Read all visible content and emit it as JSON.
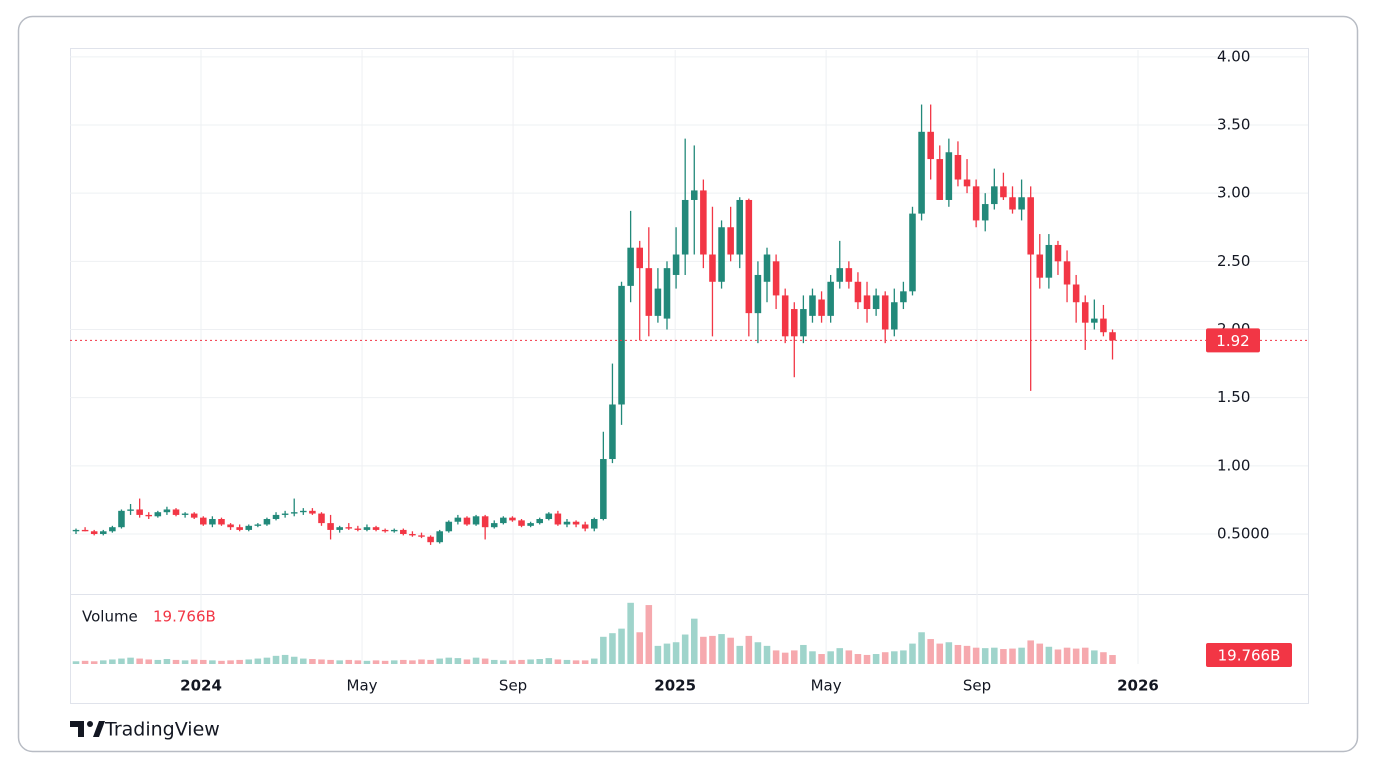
{
  "chart_data": {
    "type": "candlestick",
    "brand": "TradingView",
    "volume_label": "Volume",
    "last_price": 1.92,
    "last_volume": {
      "value": 19.766,
      "label": "19.766B"
    },
    "up_color": "#22897a",
    "down_color": "#f23645",
    "volume_up_color": "#9fd4cb",
    "volume_down_color": "#f6a9ae",
    "ylim": [
      0.06,
      4.05
    ],
    "yticks": [
      {
        "value": 0.5,
        "label": "0.5000"
      },
      {
        "value": 1,
        "label": "1.00"
      },
      {
        "value": 1.5,
        "label": "1.50"
      },
      {
        "value": 2,
        "label": "2.00"
      },
      {
        "value": 2.5,
        "label": "2.50"
      },
      {
        "value": 3,
        "label": "3.00"
      },
      {
        "value": 3.5,
        "label": "3.50"
      },
      {
        "value": 4,
        "label": "4.00"
      }
    ],
    "xlim": [
      -0.66,
      135.5
    ],
    "xticks": [
      {
        "value": 13.75,
        "label": "2024"
      },
      {
        "value": 31.46,
        "label": "May"
      },
      {
        "value": 48.07,
        "label": "Sep"
      },
      {
        "value": 65.9,
        "label": "2025"
      },
      {
        "value": 82.5,
        "label": "May"
      },
      {
        "value": 99.1,
        "label": "Sep"
      },
      {
        "value": 116.8,
        "label": "2026"
      }
    ],
    "volume_lim": [
      0,
      150
    ],
    "grid": true,
    "open": [
      0.52,
      0.53,
      0.52,
      0.5,
      0.52,
      0.55,
      0.67,
      0.68,
      0.64,
      0.63,
      0.66,
      0.68,
      0.64,
      0.65,
      0.62,
      0.57,
      0.61,
      0.57,
      0.55,
      0.53,
      0.56,
      0.57,
      0.61,
      0.64,
      0.65,
      0.66,
      0.67,
      0.65,
      0.58,
      0.53,
      0.55,
      0.54,
      0.53,
      0.55,
      0.53,
      0.52,
      0.53,
      0.5,
      0.49,
      0.48,
      0.44,
      0.52,
      0.59,
      0.62,
      0.57,
      0.63,
      0.55,
      0.58,
      0.62,
      0.6,
      0.56,
      0.58,
      0.61,
      0.65,
      0.57,
      0.59,
      0.57,
      0.54,
      0.61,
      1.05,
      1.45,
      2.32,
      2.6,
      2.45,
      2.1,
      2.08,
      2.4,
      2.55,
      2.95,
      3.02,
      2.55,
      2.35,
      2.75,
      2.55,
      2.95,
      2.12,
      2.35,
      2.5,
      2.25,
      2.15,
      1.95,
      2.1,
      2.22,
      2.1,
      2.35,
      2.45,
      2.35,
      2.25,
      2.15,
      2.25,
      2.0,
      2.2,
      2.28,
      2.85,
      3.45,
      3.25,
      2.95,
      3.28,
      3.1,
      3.05,
      2.8,
      2.92,
      3.05,
      2.97,
      2.88,
      2.97,
      2.55,
      2.38,
      2.62,
      2.5,
      2.33,
      2.2,
      2.05,
      2.08,
      1.98
    ],
    "high": [
      0.54,
      0.55,
      0.53,
      0.53,
      0.56,
      0.68,
      0.72,
      0.76,
      0.66,
      0.67,
      0.7,
      0.69,
      0.66,
      0.66,
      0.63,
      0.63,
      0.62,
      0.58,
      0.57,
      0.57,
      0.58,
      0.62,
      0.66,
      0.67,
      0.76,
      0.69,
      0.69,
      0.66,
      0.64,
      0.56,
      0.58,
      0.56,
      0.57,
      0.56,
      0.54,
      0.54,
      0.54,
      0.52,
      0.51,
      0.49,
      0.53,
      0.6,
      0.64,
      0.63,
      0.64,
      0.64,
      0.6,
      0.63,
      0.63,
      0.61,
      0.59,
      0.62,
      0.66,
      0.67,
      0.61,
      0.6,
      0.59,
      0.62,
      1.25,
      1.75,
      2.35,
      2.87,
      2.65,
      2.75,
      2.45,
      2.5,
      2.75,
      3.4,
      3.35,
      3.1,
      2.9,
      2.8,
      2.9,
      2.97,
      2.96,
      2.5,
      2.6,
      2.55,
      2.3,
      2.2,
      2.25,
      2.3,
      2.28,
      2.4,
      2.65,
      2.5,
      2.42,
      2.35,
      2.3,
      2.28,
      2.3,
      2.35,
      2.9,
      3.65,
      3.65,
      3.35,
      3.4,
      3.38,
      3.25,
      3.1,
      3.0,
      3.18,
      3.15,
      3.05,
      3.1,
      3.05,
      2.7,
      2.7,
      2.65,
      2.58,
      2.4,
      2.25,
      2.22,
      2.18,
      2.0
    ],
    "low": [
      0.5,
      0.52,
      0.49,
      0.49,
      0.51,
      0.54,
      0.64,
      0.62,
      0.61,
      0.62,
      0.64,
      0.63,
      0.62,
      0.61,
      0.56,
      0.55,
      0.56,
      0.53,
      0.52,
      0.52,
      0.55,
      0.56,
      0.6,
      0.62,
      0.63,
      0.64,
      0.64,
      0.56,
      0.46,
      0.51,
      0.53,
      0.52,
      0.52,
      0.52,
      0.51,
      0.51,
      0.49,
      0.48,
      0.47,
      0.42,
      0.43,
      0.51,
      0.57,
      0.56,
      0.56,
      0.46,
      0.54,
      0.57,
      0.59,
      0.55,
      0.55,
      0.57,
      0.6,
      0.56,
      0.55,
      0.55,
      0.52,
      0.52,
      0.6,
      1.02,
      1.3,
      2.2,
      1.92,
      1.95,
      2.05,
      2.0,
      2.3,
      2.4,
      2.55,
      2.45,
      1.95,
      2.3,
      2.5,
      2.45,
      1.95,
      1.9,
      2.2,
      2.15,
      1.9,
      1.65,
      1.9,
      2.05,
      2.05,
      2.05,
      2.3,
      2.3,
      2.15,
      2.05,
      2.1,
      1.9,
      1.95,
      2.15,
      2.25,
      2.8,
      3.1,
      2.95,
      2.9,
      3.05,
      3.0,
      2.75,
      2.72,
      2.88,
      2.95,
      2.85,
      2.8,
      1.55,
      2.3,
      2.3,
      2.4,
      2.2,
      2.05,
      1.85,
      2.0,
      1.95,
      1.78
    ],
    "close": [
      0.53,
      0.52,
      0.5,
      0.52,
      0.55,
      0.67,
      0.68,
      0.64,
      0.63,
      0.66,
      0.68,
      0.64,
      0.65,
      0.62,
      0.57,
      0.61,
      0.57,
      0.55,
      0.53,
      0.56,
      0.57,
      0.61,
      0.64,
      0.65,
      0.66,
      0.67,
      0.65,
      0.58,
      0.53,
      0.55,
      0.54,
      0.53,
      0.55,
      0.53,
      0.52,
      0.53,
      0.5,
      0.49,
      0.48,
      0.44,
      0.52,
      0.59,
      0.62,
      0.57,
      0.63,
      0.55,
      0.58,
      0.62,
      0.6,
      0.56,
      0.58,
      0.61,
      0.65,
      0.57,
      0.59,
      0.57,
      0.54,
      0.61,
      1.05,
      1.45,
      2.32,
      2.6,
      2.45,
      2.1,
      2.3,
      2.45,
      2.55,
      2.95,
      3.02,
      2.55,
      2.35,
      2.75,
      2.55,
      2.95,
      2.12,
      2.4,
      2.55,
      2.25,
      1.95,
      1.95,
      2.15,
      2.25,
      2.1,
      2.35,
      2.45,
      2.35,
      2.2,
      2.15,
      2.25,
      2.0,
      2.2,
      2.28,
      2.85,
      3.45,
      3.25,
      2.95,
      3.3,
      3.1,
      3.05,
      2.8,
      2.92,
      3.05,
      2.97,
      2.88,
      2.97,
      2.55,
      2.38,
      2.62,
      2.5,
      2.33,
      2.2,
      2.05,
      2.08,
      1.98,
      1.92
    ],
    "volume": [
      6,
      7,
      6,
      8,
      10,
      12,
      14,
      12,
      10,
      9,
      11,
      9,
      8,
      10,
      9,
      8,
      7,
      8,
      9,
      10,
      12,
      14,
      18,
      20,
      16,
      12,
      11,
      10,
      9,
      8,
      9,
      8,
      7,
      8,
      7,
      8,
      9,
      8,
      10,
      9,
      12,
      14,
      13,
      10,
      14,
      12,
      9,
      8,
      8,
      9,
      10,
      11,
      13,
      10,
      9,
      8,
      8,
      12,
      60,
      68,
      78,
      135,
      70,
      130,
      40,
      45,
      48,
      65,
      100,
      60,
      62,
      66,
      58,
      40,
      62,
      48,
      40,
      30,
      25,
      30,
      42,
      28,
      22,
      28,
      35,
      30,
      22,
      20,
      22,
      26,
      28,
      30,
      45,
      70,
      55,
      45,
      48,
      42,
      40,
      36,
      35,
      36,
      33,
      34,
      36,
      52,
      45,
      38,
      32,
      36,
      34,
      36,
      30,
      26,
      19.766
    ]
  }
}
